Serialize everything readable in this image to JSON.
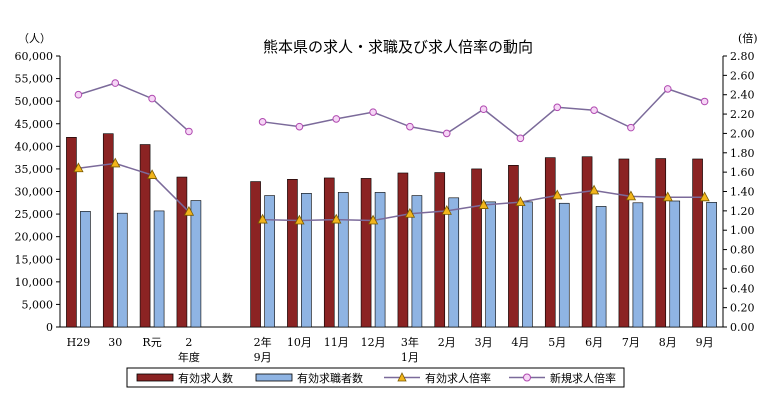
{
  "chart_data": {
    "type": "bar",
    "title": "熊本県の求人・求職及び求人倍率の動向",
    "y_left_unit": "（人）",
    "y_right_unit": "(倍)",
    "y_left_ticks": [
      "0",
      "5,000",
      "10,000",
      "15,000",
      "20,000",
      "25,000",
      "30,000",
      "35,000",
      "40,000",
      "45,000",
      "50,000",
      "55,000",
      "60,000"
    ],
    "y_right_ticks": [
      "0.00",
      "0.20",
      "0.40",
      "0.60",
      "0.80",
      "1.00",
      "1.20",
      "1.40",
      "1.60",
      "1.80",
      "2.00",
      "2.20",
      "2.40",
      "2.60",
      "2.80"
    ],
    "ylim_left": [
      0,
      60000
    ],
    "ylim_right": [
      0,
      2.8
    ],
    "categories": [
      "H29",
      "30",
      "R元",
      "2",
      "",
      "2年",
      "10月",
      "11月",
      "12月",
      "3年",
      "2月",
      "3月",
      "4月",
      "5月",
      "6月",
      "7月",
      "8月",
      "9月"
    ],
    "category_sublabels": [
      "",
      "",
      "",
      "年度",
      "",
      "9月",
      "",
      "",
      "",
      "1月",
      "",
      "",
      "",
      "",
      "",
      "",
      "",
      ""
    ],
    "series": [
      {
        "name": "有効求人数",
        "axis": "left",
        "kind": "bar",
        "color": "#8b2323",
        "values": [
          42000,
          42800,
          40400,
          33200,
          null,
          32200,
          32700,
          33000,
          32900,
          34100,
          34200,
          35000,
          35800,
          37500,
          37700,
          37200,
          37300,
          37200
        ]
      },
      {
        "name": "有効求職者数",
        "axis": "left",
        "kind": "bar",
        "color": "#8fb4e3",
        "values": [
          25600,
          25200,
          25700,
          28000,
          null,
          29100,
          29600,
          29800,
          29800,
          29100,
          28600,
          27700,
          27700,
          27400,
          26700,
          27500,
          27900,
          27600
        ]
      },
      {
        "name": "有効求人倍率",
        "axis": "right",
        "kind": "line",
        "color": "#7b6a9a",
        "marker_color": "#f2b51c",
        "values": [
          1.64,
          1.69,
          1.57,
          1.19,
          null,
          1.11,
          1.1,
          1.11,
          1.1,
          1.17,
          1.2,
          1.26,
          1.29,
          1.36,
          1.41,
          1.35,
          1.34,
          1.34
        ]
      },
      {
        "name": "新規求人倍率",
        "axis": "right",
        "kind": "line",
        "color": "#7b6a9a",
        "marker_color": "#d98ad9",
        "values": [
          2.4,
          2.52,
          2.36,
          2.02,
          null,
          2.12,
          2.07,
          2.15,
          2.22,
          2.07,
          2.0,
          2.25,
          1.95,
          2.27,
          2.24,
          2.06,
          2.46,
          2.33
        ]
      }
    ],
    "grid": false,
    "legend_position": "bottom"
  }
}
